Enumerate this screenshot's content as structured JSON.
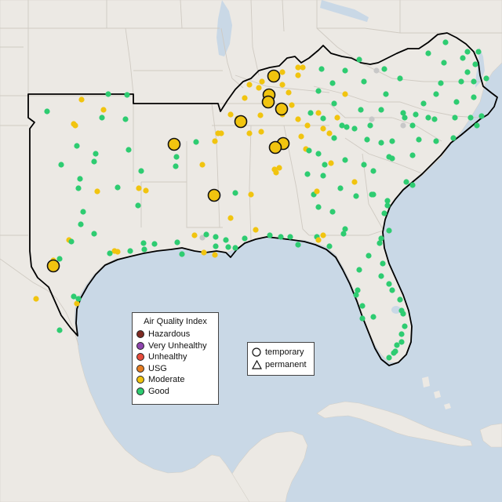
{
  "legend": {
    "title": "Air Quality Index",
    "categories": [
      {
        "label": "Hazardous",
        "color": "#7e2a22"
      },
      {
        "label": "Very Unhealthy",
        "color": "#8e44ad"
      },
      {
        "label": "Unhealthy",
        "color": "#e74c3c"
      },
      {
        "label": "USG",
        "color": "#e67e22"
      },
      {
        "label": "Moderate",
        "color": "#f1c40f"
      },
      {
        "label": "Good",
        "color": "#2ecc71"
      }
    ]
  },
  "monitor_types": [
    {
      "label": "temporary",
      "symbol": "circle-outline-icon"
    },
    {
      "label": "permanent",
      "symbol": "triangle-outline-icon"
    }
  ],
  "colors": {
    "water": "#c9d8e6",
    "land": "#ece9e4",
    "region_boundary": "#000000",
    "no_data_site": "#c8c8c8"
  }
}
